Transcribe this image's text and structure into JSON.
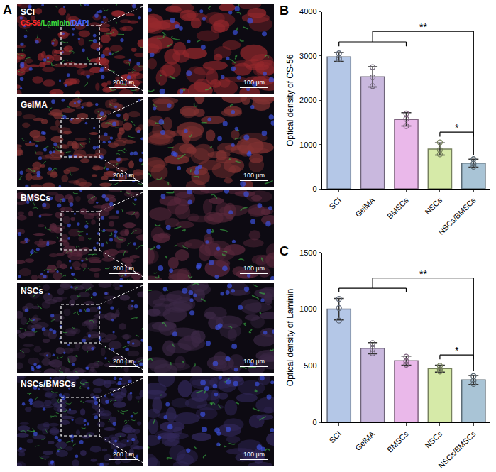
{
  "image_panel": {
    "label": "A",
    "stain": [
      {
        "text": "CS-56",
        "color": "#ff2a2a"
      },
      {
        "text": "/Laminin",
        "color": "#3ddc3d"
      },
      {
        "text": "/DAPI",
        "color": "#4a6bff"
      }
    ],
    "rows": [
      "SCI",
      "GelMA",
      "BMSCs",
      "NSCs",
      "NSCs/BMSCs"
    ],
    "scale_bars": [
      "200 μm",
      "100 μm"
    ]
  },
  "chart_data": [
    {
      "type": "bar",
      "annotations": [
        "B"
      ],
      "ylabel": "Optical density of CS-56",
      "categories": [
        "SCI",
        "GelMA",
        "BMSCs",
        "NSCs",
        "NSCs/BMSCs"
      ],
      "values": [
        2980,
        2530,
        1570,
        900,
        580
      ],
      "errors": [
        100,
        230,
        150,
        140,
        90
      ],
      "points": [
        [
          2920,
          3060,
          2960
        ],
        [
          2320,
          2750,
          2520
        ],
        [
          1420,
          1700,
          1580
        ],
        [
          780,
          1050,
          880
        ],
        [
          500,
          670,
          570
        ]
      ],
      "colors": [
        "#b4c7e7",
        "#c9b8de",
        "#eab8ea",
        "#d6eaa8",
        "#a9c4d6"
      ],
      "ylim": [
        0,
        4000
      ],
      "yticks": [
        0,
        1000,
        2000,
        3000,
        4000
      ],
      "significance": [
        {
          "group": [
            "SCI",
            "GelMA",
            "BMSCs"
          ],
          "target": "NSCs/BMSCs",
          "label": "**"
        },
        {
          "group": [
            "NSCs"
          ],
          "target": "NSCs/BMSCs",
          "label": "*"
        }
      ]
    },
    {
      "type": "bar",
      "annotations": [
        "C"
      ],
      "ylabel": "Optical density of Laminin",
      "categories": [
        "SCI",
        "GelMA",
        "BMSCs",
        "NSCs",
        "NSCs/BMSCs"
      ],
      "values": [
        1000,
        655,
        545,
        475,
        375
      ],
      "errors": [
        95,
        50,
        40,
        30,
        40
      ],
      "points": [
        [
          900,
          1090,
          1010
        ],
        [
          610,
          700,
          650
        ],
        [
          510,
          580,
          540
        ],
        [
          450,
          500,
          470
        ],
        [
          340,
          410,
          370
        ]
      ],
      "colors": [
        "#b4c7e7",
        "#c9b8de",
        "#eab8ea",
        "#d6eaa8",
        "#a9c4d6"
      ],
      "ylim": [
        0,
        1500
      ],
      "yticks": [
        0,
        500,
        1000,
        1500
      ],
      "significance": [
        {
          "group": [
            "SCI",
            "GelMA",
            "BMSCs"
          ],
          "target": "NSCs/BMSCs",
          "label": "**"
        },
        {
          "group": [
            "NSCs"
          ],
          "target": "NSCs/BMSCs",
          "label": "*"
        }
      ]
    }
  ]
}
